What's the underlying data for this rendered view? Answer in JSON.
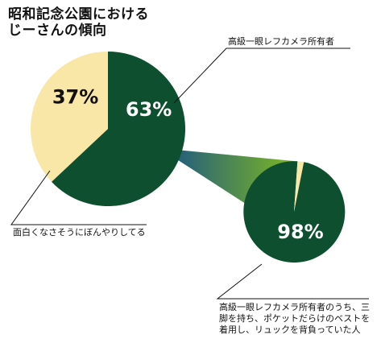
{
  "title": [
    "昭和記念公園における",
    "じーさんの傾向"
  ],
  "colors": {
    "dark_green": "#0d4f2f",
    "cream": "#f9e7a7",
    "lime": "#7db723",
    "callout_dark": "#16518a",
    "leader": "#111111"
  },
  "chart_data": [
    {
      "type": "pie",
      "slices": [
        {
          "label": "高級一眼レフカメラ所有者",
          "value": 63,
          "display": "63%",
          "color": "#0d4f2f"
        },
        {
          "label": "面白くなさそうにぼんやりしてる",
          "value": 37,
          "display": "37%",
          "color": "#f9e7a7"
        }
      ]
    },
    {
      "type": "pie",
      "slices": [
        {
          "label": "高級一眼レフカメラ所有者のうち、三脚を持ち、ポケットだらけのベストを着用し、リュックを背負っていた人",
          "value": 98,
          "display": "98%",
          "color": "#0d4f2f"
        },
        {
          "label": "",
          "value": 2,
          "display": "",
          "color": "#f9e7a7"
        }
      ]
    }
  ],
  "labels": {
    "top_right": "高級一眼レフカメラ所有者",
    "bottom_left": "面白くなさそうにぼんやりしてる",
    "bottom_right": [
      "高級一眼レフカメラ所有者のうち、三",
      "脚を持ち、ポケットだらけのベストを",
      "着用し、リュックを背負っていた人"
    ]
  }
}
